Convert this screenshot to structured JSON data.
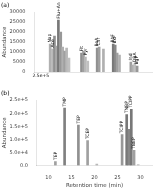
{
  "chart_data": [
    {
      "type": "bar",
      "title": "(a)",
      "x": [
        6.5,
        7.1,
        7.6,
        8.2,
        8.6,
        9.2,
        9.7,
        10.2,
        10.7,
        11.3,
        14.5,
        15.0,
        15.5,
        16.1,
        18.5,
        19.0,
        20.1,
        22.6,
        23.1,
        23.6,
        24.2,
        27.1,
        27.6,
        28.1,
        28.7
      ],
      "values": [
        14000,
        11500,
        18000,
        13000,
        26000,
        20000,
        12500,
        10500,
        12000,
        7000,
        9500,
        10500,
        7500,
        5500,
        12000,
        12500,
        11500,
        14000,
        13500,
        9500,
        8500,
        5000,
        3500,
        4200,
        3000
      ],
      "colors": [
        "#b0b0b0",
        "#b8b8b8",
        "#909090",
        "#a8a8a8",
        "#787878",
        "#989898",
        "#b0b0b0",
        "#a0a0a0",
        "#b8b8b8",
        "#c0c0c0",
        "#909090",
        "#a0a0a0",
        "#b8b8b8",
        "#c0c0c0",
        "#909090",
        "#a0a0a0",
        "#b0b0b0",
        "#787878",
        "#888888",
        "#a0a0a0",
        "#b0b0b0",
        "#a0a0a0",
        "#b0b0b0",
        "#c0c0c0",
        "#989898"
      ],
      "ylabel": "Abundance",
      "xlim": [
        5,
        30
      ],
      "xticks": [
        5,
        10,
        15,
        20,
        25,
        30
      ],
      "ylim": [
        0,
        30000
      ],
      "yticks": [
        0,
        5000,
        10000,
        15000,
        20000,
        25000,
        30000
      ],
      "tick_labels": "y",
      "grid": false,
      "annotations": [
        {
          "x": 6.5,
          "y": 14000,
          "text": "Nap"
        },
        {
          "x": 7.1,
          "y": 11500,
          "text": "Ace"
        },
        {
          "x": 8.6,
          "y": 26000,
          "text": "Flu+An"
        },
        {
          "x": 14.5,
          "y": 9500,
          "text": "Flt"
        },
        {
          "x": 15.5,
          "y": 7500,
          "text": "Pyr"
        },
        {
          "x": 18.5,
          "y": 12000,
          "text": "BaA"
        },
        {
          "x": 19.0,
          "y": 12500,
          "text": "Chr"
        },
        {
          "x": 22.6,
          "y": 14000,
          "text": "BbF"
        },
        {
          "x": 23.1,
          "y": 13500,
          "text": "BkF"
        },
        {
          "x": 27.1,
          "y": 5000,
          "text": "Ind"
        },
        {
          "x": 28.1,
          "y": 4200,
          "text": "DBA"
        },
        {
          "x": 28.7,
          "y": 3000,
          "text": "BgP"
        },
        {
          "text": "2.5e+5"
        }
      ]
    },
    {
      "type": "bar",
      "title": "(b)",
      "x": [
        11.5,
        13.5,
        16.5,
        18.5,
        20.5,
        26.0,
        27.0,
        27.5,
        28.0,
        28.6,
        29.5
      ],
      "values": [
        15000,
        220000,
        155000,
        95000,
        5000,
        118000,
        195000,
        138000,
        215000,
        58000,
        3000
      ],
      "colors": [
        "#a0a0a0",
        "#808080",
        "#909090",
        "#a0a0a0",
        "#b8b8b8",
        "#989898",
        "#787878",
        "#888888",
        "#787878",
        "#a0a0a0",
        "#c0c0c0"
      ],
      "ylabel": "Abundance",
      "xlabel": "Retention time (min)",
      "xlim": [
        10,
        30
      ],
      "xticks": [
        10,
        15,
        20,
        25,
        30
      ],
      "ylim": [
        0,
        250000
      ],
      "yticks": [
        {
          "value": 0,
          "label": "0.0"
        },
        {
          "value": 50000,
          "label": "5.0e+4"
        },
        {
          "value": 100000,
          "label": "1.0e+5"
        },
        {
          "value": 150000,
          "label": "1.5e+5"
        },
        {
          "value": 200000,
          "label": "2.0e+5"
        },
        {
          "value": 250000,
          "label": "2.5e+5"
        }
      ],
      "grid": false,
      "annotations": [
        {
          "x": 11.5,
          "y": 15000,
          "text": "TEP"
        },
        {
          "x": 13.5,
          "y": 220000,
          "text": "TMP"
        },
        {
          "x": 16.5,
          "y": 155000,
          "text": "TEP"
        },
        {
          "x": 18.5,
          "y": 95000,
          "text": "TCEP"
        },
        {
          "x": 26.0,
          "y": 118000,
          "text": "TCIPP"
        },
        {
          "x": 27.0,
          "y": 195000,
          "text": "TNBP"
        },
        {
          "x": 28.0,
          "y": 215000,
          "text": "TCIPP"
        },
        {
          "x": 28.6,
          "y": 58000,
          "text": "TBEP"
        }
      ]
    }
  ]
}
